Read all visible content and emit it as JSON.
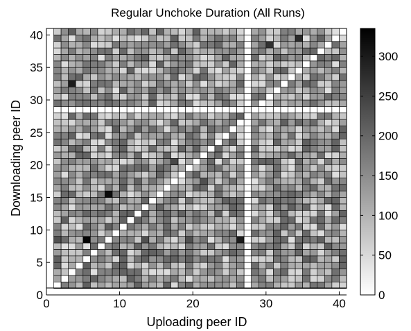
{
  "chart_data": {
    "type": "heatmap",
    "title": "Regular Unchoke Duration (All Runs)",
    "xlabel": "Uploading peer ID",
    "ylabel": "Downloading peer ID",
    "xlim": [
      0,
      41
    ],
    "ylim": [
      0,
      41
    ],
    "x_ticks": [
      0,
      10,
      20,
      30,
      40
    ],
    "y_ticks": [
      0,
      5,
      10,
      15,
      20,
      25,
      30,
      35,
      40
    ],
    "grid": "cell borders",
    "colormap": "gray (white = 0, black = max)",
    "colorbar": {
      "range": [
        0,
        335
      ],
      "ticks": [
        0,
        50,
        100,
        150,
        200,
        250,
        300
      ],
      "placement": "right"
    },
    "peers": 40,
    "empty_rows": [
      28
    ],
    "empty_columns": [
      27
    ],
    "diagonal": "empty (white)",
    "notable_cells": [
      {
        "uploader": 5,
        "downloader": 8,
        "value": 330
      },
      {
        "uploader": 26,
        "downloader": 8,
        "value": 300
      },
      {
        "uploader": 8,
        "downloader": 15,
        "value": 320
      },
      {
        "uploader": 3,
        "downloader": 32,
        "value": 300
      },
      {
        "uploader": 34,
        "downloader": 39,
        "value": 280
      },
      {
        "uploader": 30,
        "downloader": 38,
        "value": 270
      },
      {
        "uploader": 17,
        "downloader": 20,
        "value": 240
      },
      {
        "uploader": 21,
        "downloader": 17,
        "value": 230
      },
      {
        "uploader": 1,
        "downloader": 8,
        "value": 230
      },
      {
        "uploader": 13,
        "downloader": 8,
        "value": 230
      },
      {
        "uploader": 19,
        "downloader": 8,
        "value": 230
      }
    ],
    "typical_range": [
      40,
      210
    ]
  }
}
